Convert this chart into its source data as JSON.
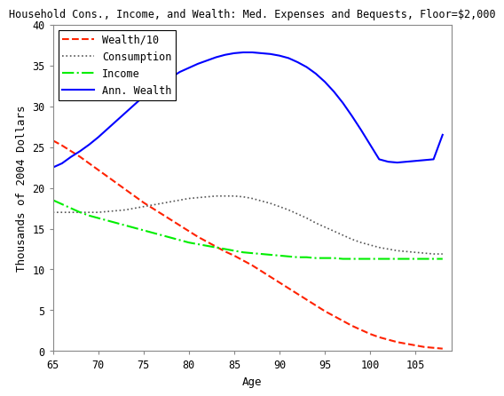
{
  "title": "Household Cons., Income, and Wealth: Med. Expenses and Bequests, Floor=$2,000",
  "xlabel": "Age",
  "ylabel": "Thousands of 2004 Dollars",
  "xlim": [
    65,
    109
  ],
  "ylim": [
    0,
    40
  ],
  "yticks": [
    0,
    5,
    10,
    15,
    20,
    25,
    30,
    35,
    40
  ],
  "xticks": [
    65,
    70,
    75,
    80,
    85,
    90,
    95,
    100,
    105
  ],
  "age": [
    65,
    66,
    67,
    68,
    69,
    70,
    71,
    72,
    73,
    74,
    75,
    76,
    77,
    78,
    79,
    80,
    81,
    82,
    83,
    84,
    85,
    86,
    87,
    88,
    89,
    90,
    91,
    92,
    93,
    94,
    95,
    96,
    97,
    98,
    99,
    100,
    101,
    102,
    103,
    104,
    105,
    106,
    107,
    108
  ],
  "wealth10": [
    25.8,
    25.2,
    24.5,
    23.8,
    23.0,
    22.2,
    21.4,
    20.6,
    19.8,
    19.0,
    18.2,
    17.5,
    16.8,
    16.1,
    15.4,
    14.7,
    14.0,
    13.4,
    12.8,
    12.2,
    11.7,
    11.1,
    10.5,
    9.8,
    9.1,
    8.4,
    7.7,
    7.0,
    6.3,
    5.6,
    4.9,
    4.3,
    3.7,
    3.1,
    2.6,
    2.1,
    1.7,
    1.4,
    1.1,
    0.9,
    0.7,
    0.5,
    0.4,
    0.3
  ],
  "consumption": [
    17.0,
    17.0,
    17.0,
    17.0,
    17.0,
    17.0,
    17.1,
    17.2,
    17.3,
    17.5,
    17.7,
    17.9,
    18.1,
    18.3,
    18.5,
    18.7,
    18.8,
    18.9,
    19.0,
    19.0,
    19.0,
    18.9,
    18.7,
    18.4,
    18.1,
    17.7,
    17.3,
    16.8,
    16.3,
    15.7,
    15.2,
    14.7,
    14.2,
    13.7,
    13.3,
    13.0,
    12.7,
    12.5,
    12.3,
    12.2,
    12.1,
    12.0,
    11.9,
    11.9
  ],
  "income": [
    18.5,
    18.0,
    17.5,
    17.0,
    16.6,
    16.3,
    16.0,
    15.7,
    15.4,
    15.1,
    14.8,
    14.5,
    14.2,
    13.9,
    13.6,
    13.3,
    13.1,
    12.9,
    12.7,
    12.5,
    12.3,
    12.1,
    12.0,
    11.9,
    11.8,
    11.7,
    11.6,
    11.5,
    11.5,
    11.4,
    11.4,
    11.4,
    11.3,
    11.3,
    11.3,
    11.3,
    11.3,
    11.3,
    11.3,
    11.3,
    11.3,
    11.3,
    11.3,
    11.3
  ],
  "ann_wealth": [
    22.5,
    23.0,
    23.8,
    24.5,
    25.3,
    26.2,
    27.2,
    28.2,
    29.2,
    30.2,
    31.2,
    32.0,
    32.8,
    33.5,
    34.2,
    34.7,
    35.2,
    35.6,
    36.0,
    36.3,
    36.5,
    36.6,
    36.6,
    36.5,
    36.4,
    36.2,
    35.9,
    35.4,
    34.8,
    34.0,
    33.0,
    31.8,
    30.4,
    28.8,
    27.1,
    25.3,
    23.5,
    23.2,
    23.1,
    23.2,
    23.3,
    23.4,
    23.5,
    26.5
  ],
  "wealth_color": "#ff2200",
  "consumption_color": "#555555",
  "income_color": "#00ee00",
  "ann_wealth_color": "#0000ff",
  "bg_color": "#ffffff",
  "title_fontsize": 8.5,
  "label_fontsize": 9,
  "tick_fontsize": 8.5,
  "legend_fontsize": 8.5
}
